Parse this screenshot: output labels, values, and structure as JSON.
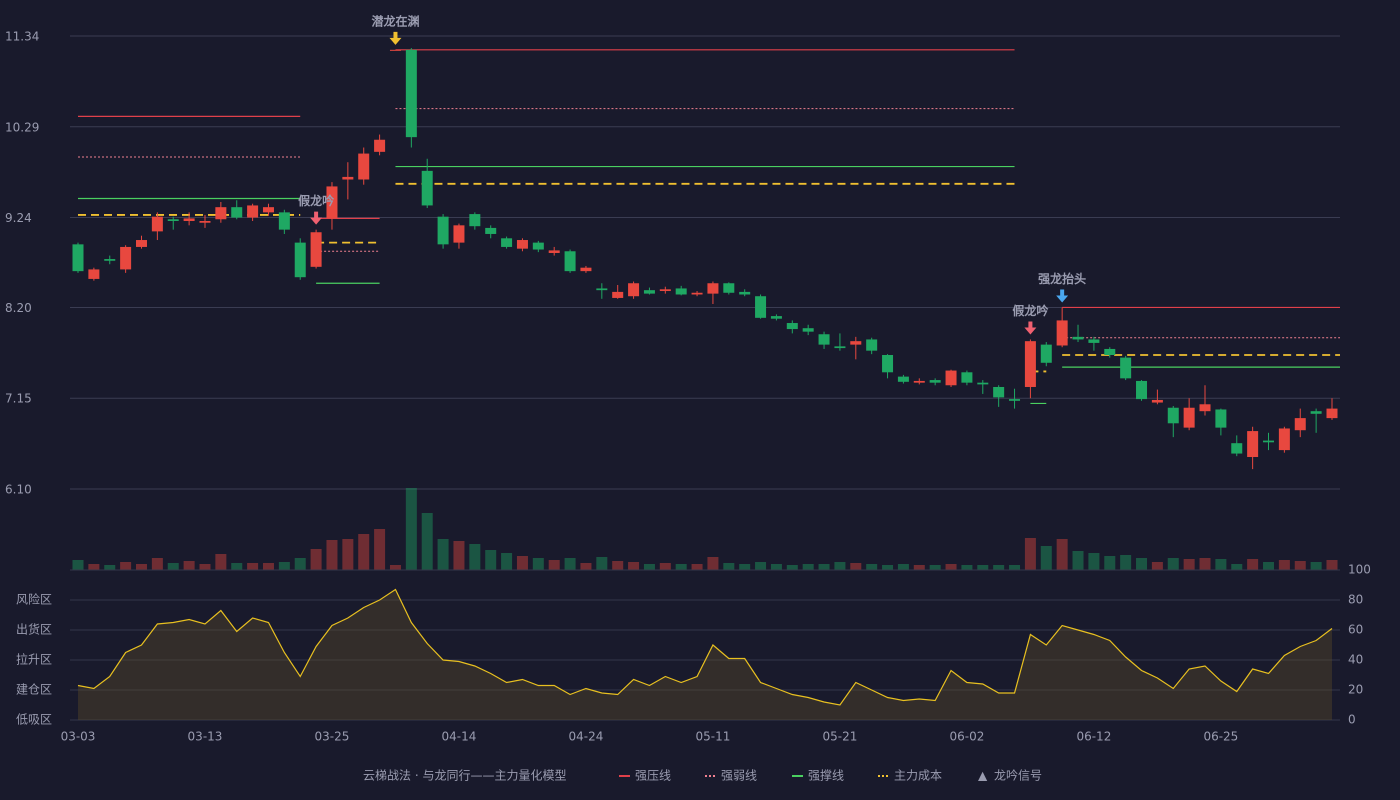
{
  "chart_data": {
    "type": "candlestick",
    "categories": [
      "03-03",
      null,
      null,
      null,
      null,
      null,
      null,
      null,
      "03-13",
      null,
      null,
      null,
      null,
      null,
      null,
      null,
      "03-25",
      null,
      null,
      null,
      null,
      null,
      null,
      null,
      "04-14",
      null,
      null,
      null,
      null,
      null,
      null,
      null,
      "04-24",
      null,
      null,
      null,
      null,
      null,
      null,
      null,
      "05-11",
      null,
      null,
      null,
      null,
      null,
      null,
      null,
      "05-21",
      null,
      null,
      null,
      null,
      null,
      null,
      null,
      "06-02",
      null,
      null,
      null,
      null,
      null,
      null,
      null,
      "06-12",
      null,
      null,
      null,
      null,
      null,
      null,
      null,
      "06-25",
      null,
      null,
      null,
      null,
      null,
      null,
      null
    ],
    "open": [
      8.93,
      8.53,
      8.76,
      8.64,
      8.9,
      9.08,
      9.22,
      9.2,
      9.18,
      9.22,
      9.36,
      9.24,
      9.3,
      9.3,
      8.95,
      8.67,
      9.23,
      9.68,
      9.68,
      10.0,
      11.18,
      11.18,
      9.78,
      9.25,
      8.95,
      9.28,
      9.12,
      9.0,
      8.88,
      8.95,
      8.83,
      8.85,
      8.62,
      8.42,
      8.31,
      8.33,
      8.4,
      8.39,
      8.42,
      8.35,
      8.36,
      8.48,
      8.38,
      8.33,
      8.1,
      8.02,
      7.96,
      7.89,
      7.75,
      7.77,
      7.83,
      7.65,
      7.4,
      7.33,
      7.36,
      7.3,
      7.45,
      7.33,
      7.28,
      7.14,
      7.28,
      7.77,
      7.76,
      7.86,
      7.83,
      7.72,
      7.62,
      7.35,
      7.1,
      7.04,
      6.81,
      7.0,
      7.02,
      6.63,
      6.47,
      6.66,
      6.55,
      6.78,
      7.0,
      6.92
    ],
    "high": [
      8.95,
      8.66,
      8.8,
      8.92,
      9.03,
      9.3,
      9.25,
      9.3,
      9.27,
      9.42,
      9.44,
      9.4,
      9.4,
      9.33,
      9.0,
      9.1,
      9.65,
      9.88,
      10.05,
      10.2,
      11.18,
      11.2,
      9.92,
      9.28,
      9.17,
      9.3,
      9.15,
      9.02,
      9.0,
      8.97,
      8.9,
      8.87,
      8.68,
      8.48,
      8.46,
      8.5,
      8.43,
      8.44,
      8.45,
      8.39,
      8.5,
      8.49,
      8.41,
      8.35,
      8.12,
      8.05,
      8.0,
      7.92,
      7.9,
      7.86,
      7.85,
      7.66,
      7.42,
      7.38,
      7.38,
      7.48,
      7.47,
      7.36,
      7.3,
      7.26,
      7.83,
      7.8,
      8.2,
      8.0,
      7.86,
      7.74,
      7.64,
      7.36,
      7.25,
      7.06,
      7.15,
      7.3,
      7.03,
      6.72,
      6.82,
      6.75,
      6.82,
      7.03,
      7.03,
      7.15
    ],
    "low": [
      8.6,
      8.51,
      8.7,
      8.6,
      8.88,
      8.98,
      9.1,
      9.15,
      9.12,
      9.18,
      9.22,
      9.2,
      9.26,
      9.05,
      8.52,
      8.65,
      9.1,
      9.45,
      9.62,
      9.96,
      11.18,
      10.05,
      9.35,
      8.88,
      8.88,
      9.1,
      9.0,
      8.88,
      8.85,
      8.84,
      8.8,
      8.6,
      8.6,
      8.3,
      8.3,
      8.3,
      8.35,
      8.36,
      8.34,
      8.33,
      8.24,
      8.35,
      8.33,
      8.07,
      8.05,
      7.9,
      7.88,
      7.72,
      7.7,
      7.6,
      7.66,
      7.38,
      7.32,
      7.31,
      7.3,
      7.28,
      7.3,
      7.2,
      7.05,
      7.03,
      7.15,
      7.52,
      7.74,
      7.8,
      7.7,
      7.62,
      7.36,
      7.12,
      7.08,
      6.7,
      6.78,
      6.95,
      6.72,
      6.48,
      6.33,
      6.55,
      6.52,
      6.7,
      6.75,
      6.9
    ],
    "close": [
      8.62,
      8.64,
      8.74,
      8.9,
      8.98,
      9.25,
      9.2,
      9.23,
      9.2,
      9.36,
      9.24,
      9.38,
      9.36,
      9.1,
      8.55,
      9.07,
      9.6,
      9.71,
      9.98,
      10.14,
      11.18,
      10.17,
      9.38,
      8.93,
      9.15,
      9.14,
      9.05,
      8.9,
      8.98,
      8.87,
      8.86,
      8.62,
      8.66,
      8.4,
      8.38,
      8.48,
      8.36,
      8.41,
      8.35,
      8.37,
      8.48,
      8.37,
      8.35,
      8.08,
      8.07,
      7.95,
      7.92,
      7.77,
      7.73,
      7.81,
      7.7,
      7.45,
      7.34,
      7.35,
      7.33,
      7.47,
      7.33,
      7.31,
      7.16,
      7.12,
      7.81,
      7.56,
      8.05,
      7.83,
      7.79,
      7.65,
      7.38,
      7.14,
      7.13,
      6.86,
      7.04,
      7.08,
      6.81,
      6.51,
      6.77,
      6.64,
      6.8,
      6.92,
      6.97,
      7.03
    ],
    "up_color": "#e8483f",
    "down_color": "#1fa863",
    "ylim": [
      6.1,
      11.34
    ],
    "yticks": [
      11.34,
      10.29,
      9.24,
      {
        "value": 8.2,
        "label": "8.20"
      },
      7.15,
      {
        "value": 6.1,
        "label": "6.10"
      }
    ],
    "grid": true,
    "volume": [
      10,
      6,
      5,
      8,
      6,
      12,
      7,
      9,
      6,
      16,
      7,
      7,
      7,
      8,
      12,
      21,
      30,
      31,
      36,
      41,
      5,
      82,
      57,
      31,
      29,
      26,
      20,
      17,
      14,
      12,
      10,
      12,
      7,
      13,
      9,
      8,
      6,
      7,
      6,
      6,
      13,
      7,
      6,
      8,
      6,
      5,
      6,
      6,
      8,
      7,
      6,
      5,
      6,
      5,
      5,
      6,
      5,
      5,
      5,
      5,
      32,
      24,
      31,
      19,
      17,
      14,
      15,
      12,
      8,
      12,
      11,
      12,
      11,
      6,
      11,
      8,
      10,
      9,
      8,
      10
    ],
    "level_lines": [
      {
        "name": "强压线",
        "color": "#e0404a",
        "dash": "none",
        "width": 1.2,
        "segments": [
          {
            "start": 0,
            "end": 14,
            "value": 10.41
          },
          {
            "start": 15,
            "end": 19,
            "value": 9.23
          },
          {
            "start": 20,
            "end": 59,
            "value": 11.18
          },
          {
            "start": 62,
            "end": 79,
            "value": 8.2
          }
        ]
      },
      {
        "name": "强弱线",
        "color": "#f08090",
        "dash": "2,2",
        "width": 1,
        "segments": [
          {
            "start": 0,
            "end": 14,
            "value": 9.94
          },
          {
            "start": 15,
            "end": 19,
            "value": 8.85
          },
          {
            "start": 20,
            "end": 59,
            "value": 10.5
          },
          {
            "start": 62,
            "end": 79,
            "value": 7.85
          }
        ]
      },
      {
        "name": "强撑线",
        "color": "#4ad060",
        "dash": "none",
        "width": 1.2,
        "segments": [
          {
            "start": 0,
            "end": 14,
            "value": 9.46
          },
          {
            "start": 15,
            "end": 19,
            "value": 8.48
          },
          {
            "start": 20,
            "end": 59,
            "value": 9.83
          },
          {
            "start": 60,
            "end": 61,
            "value": 7.09
          },
          {
            "start": 62,
            "end": 79,
            "value": 7.51
          }
        ]
      },
      {
        "name": "主力成本",
        "color": "#f0c030",
        "dash": "8,5",
        "width": 1.8,
        "segments": [
          {
            "start": 0,
            "end": 14,
            "value": 9.27
          },
          {
            "start": 15,
            "end": 19,
            "value": 8.95
          },
          {
            "start": 20,
            "end": 59,
            "value": 9.63
          },
          {
            "start": 60,
            "end": 61,
            "value": 7.46
          },
          {
            "start": 62,
            "end": 79,
            "value": 7.65
          }
        ]
      }
    ],
    "signals": [
      {
        "label": "潜龙在渊",
        "index": 20,
        "color": "#f0c030"
      },
      {
        "label": "假龙吟",
        "index": 15,
        "color": "#f06070"
      },
      {
        "label": "假龙吟",
        "index": 60,
        "color": "#f06070"
      },
      {
        "label": "强龙抬头",
        "index": 62,
        "color": "#4aa8f0"
      }
    ],
    "indicator": {
      "type": "area",
      "values": [
        23,
        21,
        29,
        45,
        50,
        64,
        65,
        67,
        64,
        73,
        59,
        68,
        65,
        45,
        29,
        49,
        63,
        68,
        75,
        80,
        87,
        65,
        51,
        40,
        39,
        36,
        31,
        25,
        27,
        23,
        23,
        17,
        21,
        18,
        17,
        27,
        23,
        29,
        25,
        29,
        50,
        41,
        41,
        25,
        21,
        17,
        15,
        12,
        10,
        25,
        20,
        15,
        13,
        14,
        13,
        33,
        25,
        24,
        18,
        18,
        57,
        50,
        63,
        60,
        57,
        53,
        42,
        33,
        28,
        21,
        34,
        36,
        26,
        19,
        34,
        31,
        43,
        49,
        53,
        61
      ],
      "color": "#e8c020",
      "ylim": [
        0,
        100
      ],
      "yticks": [
        0,
        20,
        40,
        60,
        80,
        100
      ],
      "ytick_colors": [
        "#f04050",
        "#f0a030",
        "#4a9af0",
        "#e040e0",
        "#f0a030",
        "#40e040"
      ],
      "zones": [
        {
          "label": "风险区",
          "value": 80,
          "color": "#f0a030"
        },
        {
          "label": "出货区",
          "value": 60,
          "color": "#e040e0"
        },
        {
          "label": "拉升区",
          "value": 40,
          "color": "#4a9af0"
        },
        {
          "label": "建仓区",
          "value": 20,
          "color": "#f04050"
        },
        {
          "label": "低吸区",
          "value": 0,
          "color": "#e04050"
        }
      ]
    },
    "legend_title": "云梯战法 · 与龙同行——主力量化模型",
    "legend_title_color": "#f0c060",
    "signal_legend": {
      "name": "龙吟信号",
      "marker": "▲",
      "color": "#f0c030"
    }
  }
}
